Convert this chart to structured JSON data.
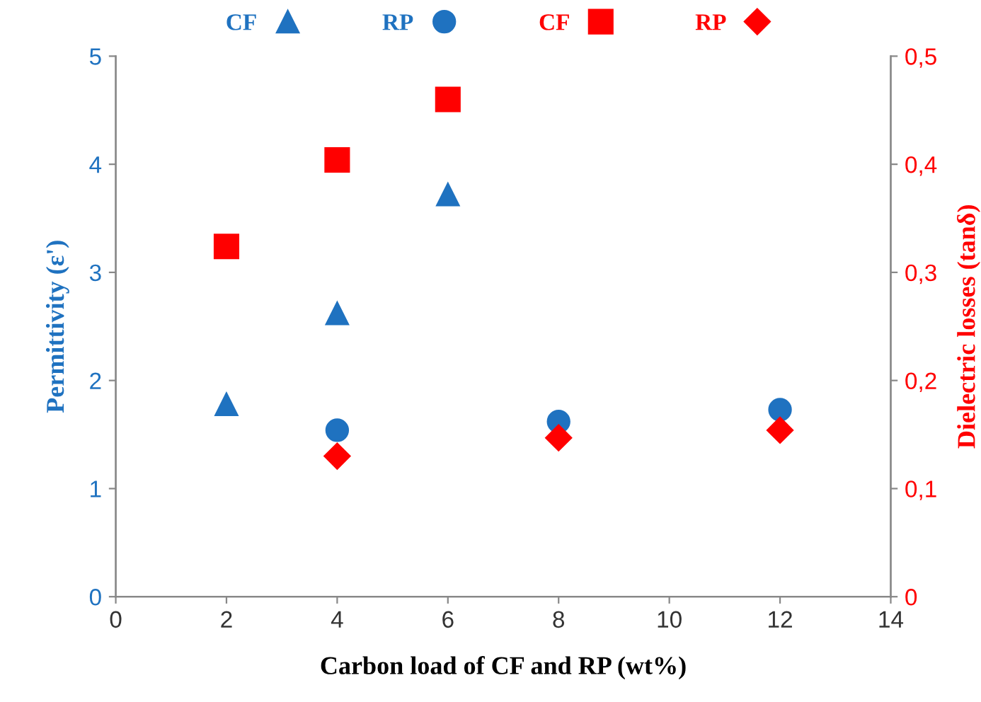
{
  "chart_data": {
    "type": "scatter",
    "xlabel": "Carbon load of CF and RP (wt%)",
    "ylabel": "Permittivity (ε')",
    "y2label": "Dielectric losses (tanδ)",
    "series": [
      {
        "name": "CF",
        "color": "#1f72c0",
        "marker": "triangle",
        "x": [
          2,
          4,
          6
        ],
        "values": [
          1.78,
          2.62,
          3.72
        ]
      },
      {
        "name": "RP",
        "color": "#1f72c0",
        "marker": "circle",
        "x": [
          4,
          8,
          12
        ],
        "values": [
          1.54,
          1.62,
          1.73
        ]
      },
      {
        "name": "CF",
        "color": "#ff0000",
        "marker": "square",
        "axis": "y2",
        "x": [
          2,
          4,
          6
        ],
        "values": [
          0.324,
          0.404,
          0.46
        ]
      },
      {
        "name": "RP",
        "color": "#ff0000",
        "marker": "diamond",
        "axis": "y2",
        "x": [
          4,
          8,
          12
        ],
        "values": [
          0.13,
          0.147,
          0.154
        ]
      }
    ],
    "xlim": [
      0,
      14
    ],
    "xticks": [
      0,
      2,
      4,
      6,
      8,
      10,
      12,
      14
    ],
    "ylim": [
      0,
      5
    ],
    "yticks": [
      0,
      1,
      2,
      3,
      4,
      5
    ],
    "y2lim": [
      0,
      0.5
    ],
    "y2ticks": [
      0,
      {
        "value": 0.1,
        "label": "0,1"
      },
      {
        "value": 0.2,
        "label": "0,2"
      },
      {
        "value": 0.3,
        "label": "0,3"
      },
      {
        "value": 0.4,
        "label": "0,4"
      },
      {
        "value": 0.5,
        "label": "0,5"
      }
    ],
    "grid": false,
    "legend": "top"
  }
}
